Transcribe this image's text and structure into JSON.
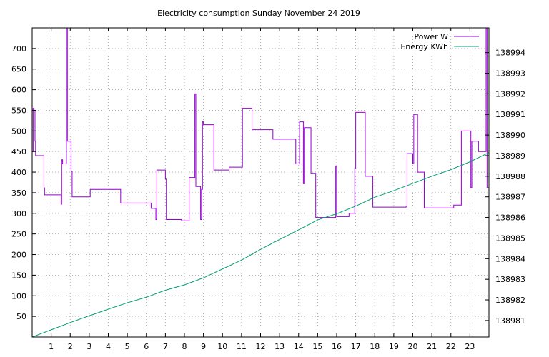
{
  "chart_data": {
    "type": "line",
    "title": "Electricity consumption Sunday November 24 2019",
    "xlabel": "",
    "ylabel": "",
    "y2label": "",
    "xlim": [
      0,
      24
    ],
    "ylim": [
      0,
      750
    ],
    "y2lim": [
      138980.2,
      138995.2
    ],
    "x_ticks": [
      1,
      2,
      3,
      4,
      5,
      6,
      7,
      8,
      9,
      10,
      11,
      12,
      13,
      14,
      15,
      16,
      17,
      18,
      19,
      20,
      21,
      22,
      23
    ],
    "x_tick_labels": [
      "1",
      "2",
      "3",
      "4",
      "5",
      "6",
      "7",
      "8",
      "9",
      "10",
      "11",
      "12",
      "13",
      "14",
      "15",
      "16",
      "17",
      "18",
      "19",
      "20",
      "21",
      "22",
      "23"
    ],
    "y_ticks": [
      50,
      100,
      150,
      200,
      250,
      300,
      350,
      400,
      450,
      500,
      550,
      600,
      650,
      700
    ],
    "y_tick_labels": [
      "50",
      "100",
      "150",
      "200",
      "250",
      "300",
      "350",
      "400",
      "450",
      "500",
      "550",
      "600",
      "650",
      "700"
    ],
    "y2_ticks": [
      138981,
      138982,
      138983,
      138984,
      138985,
      138986,
      138987,
      138988,
      138989,
      138990,
      138991,
      138992,
      138993,
      138994
    ],
    "y2_tick_labels": [
      "138981",
      "138982",
      "138983",
      "138984",
      "138985",
      "138986",
      "138987",
      "138988",
      "138989",
      "138990",
      "138991",
      "138992",
      "138993",
      "138994"
    ],
    "grid": true,
    "legend_position": "top-right",
    "series": [
      {
        "name": "Power W",
        "axis": "y1",
        "color": "#9400d3",
        "step": true,
        "points": [
          [
            0,
            450
          ],
          [
            0.05,
            555
          ],
          [
            0.1,
            550
          ],
          [
            0.15,
            475
          ],
          [
            0.18,
            440
          ],
          [
            0.6,
            440
          ],
          [
            0.62,
            362
          ],
          [
            0.65,
            345
          ],
          [
            1.5,
            345
          ],
          [
            1.52,
            322
          ],
          [
            1.55,
            430
          ],
          [
            1.6,
            420
          ],
          [
            1.8,
            750
          ],
          [
            1.85,
            475
          ],
          [
            2.0,
            475
          ],
          [
            2.05,
            402
          ],
          [
            2.1,
            340
          ],
          [
            3.0,
            340
          ],
          [
            3.05,
            358
          ],
          [
            4.6,
            358
          ],
          [
            4.65,
            325
          ],
          [
            6.2,
            325
          ],
          [
            6.25,
            312
          ],
          [
            6.45,
            312
          ],
          [
            6.5,
            285
          ],
          [
            6.55,
            405
          ],
          [
            6.95,
            405
          ],
          [
            7.0,
            383
          ],
          [
            7.05,
            285
          ],
          [
            7.8,
            285
          ],
          [
            7.85,
            282
          ],
          [
            8.2,
            282
          ],
          [
            8.25,
            387
          ],
          [
            8.5,
            387
          ],
          [
            8.55,
            590
          ],
          [
            8.6,
            365
          ],
          [
            8.8,
            365
          ],
          [
            8.85,
            285
          ],
          [
            8.9,
            358
          ],
          [
            8.95,
            522
          ],
          [
            9.0,
            515
          ],
          [
            9.5,
            515
          ],
          [
            9.55,
            405
          ],
          [
            10.3,
            405
          ],
          [
            10.35,
            412
          ],
          [
            11.0,
            412
          ],
          [
            11.05,
            555
          ],
          [
            11.5,
            555
          ],
          [
            11.55,
            503
          ],
          [
            12.6,
            503
          ],
          [
            12.65,
            480
          ],
          [
            13.8,
            480
          ],
          [
            13.85,
            420
          ],
          [
            14.0,
            420
          ],
          [
            14.05,
            522
          ],
          [
            14.2,
            522
          ],
          [
            14.25,
            372
          ],
          [
            14.3,
            508
          ],
          [
            14.6,
            508
          ],
          [
            14.65,
            397
          ],
          [
            14.85,
            397
          ],
          [
            14.9,
            290
          ],
          [
            15.9,
            290
          ],
          [
            15.95,
            415
          ],
          [
            16.0,
            292
          ],
          [
            16.6,
            292
          ],
          [
            16.65,
            300
          ],
          [
            16.9,
            300
          ],
          [
            16.95,
            410
          ],
          [
            17.0,
            545
          ],
          [
            17.45,
            545
          ],
          [
            17.5,
            390
          ],
          [
            17.85,
            390
          ],
          [
            17.9,
            315
          ],
          [
            19.6,
            315
          ],
          [
            19.65,
            318
          ],
          [
            19.7,
            445
          ],
          [
            19.95,
            445
          ],
          [
            20.0,
            420
          ],
          [
            20.05,
            540
          ],
          [
            20.2,
            540
          ],
          [
            20.25,
            400
          ],
          [
            20.55,
            400
          ],
          [
            20.6,
            313
          ],
          [
            22.1,
            313
          ],
          [
            22.15,
            320
          ],
          [
            22.5,
            320
          ],
          [
            22.55,
            500
          ],
          [
            23.0,
            500
          ],
          [
            23.05,
            362
          ],
          [
            23.1,
            475
          ],
          [
            23.4,
            475
          ],
          [
            23.45,
            450
          ],
          [
            23.8,
            450
          ],
          [
            23.85,
            750
          ],
          [
            23.9,
            362
          ],
          [
            24.0,
            362
          ]
        ]
      },
      {
        "name": "Energy KWh",
        "axis": "y2",
        "color": "#009e73",
        "step": false,
        "points": [
          [
            0,
            138980.2
          ],
          [
            1.0,
            138980.55
          ],
          [
            2.0,
            138980.9
          ],
          [
            3.0,
            138981.23
          ],
          [
            4.0,
            138981.55
          ],
          [
            5.0,
            138981.86
          ],
          [
            6.0,
            138982.13
          ],
          [
            7.0,
            138982.47
          ],
          [
            8.0,
            138982.73
          ],
          [
            9.0,
            138983.07
          ],
          [
            10.0,
            138983.5
          ],
          [
            11.0,
            138983.93
          ],
          [
            12.0,
            138984.45
          ],
          [
            13.0,
            138984.93
          ],
          [
            14.0,
            138985.4
          ],
          [
            15.0,
            138985.88
          ],
          [
            16.0,
            138986.18
          ],
          [
            17.0,
            138986.55
          ],
          [
            18.0,
            138986.98
          ],
          [
            19.0,
            138987.3
          ],
          [
            20.0,
            138987.65
          ],
          [
            21.0,
            138988.0
          ],
          [
            22.0,
            138988.32
          ],
          [
            23.0,
            138988.7
          ],
          [
            24.0,
            138989.15
          ]
        ]
      }
    ]
  }
}
